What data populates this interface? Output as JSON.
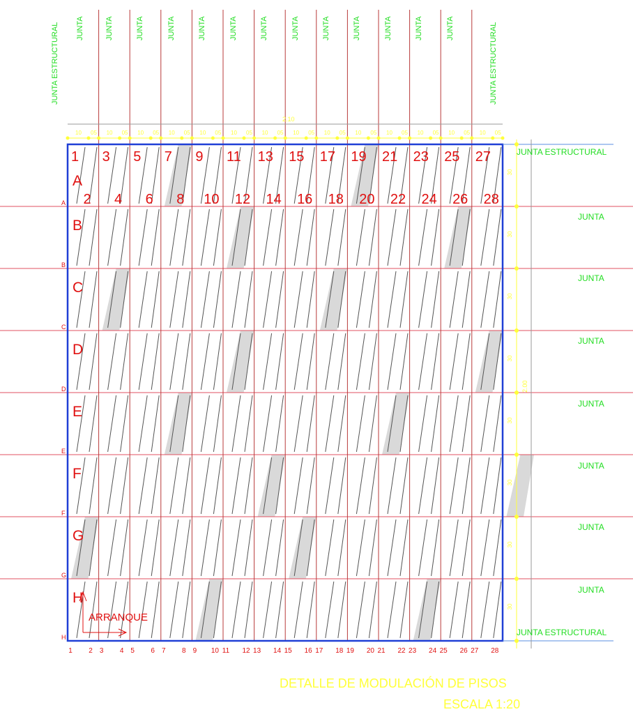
{
  "drawing": {
    "title": "DETALLE DE MODULACIÓN DE PISOS",
    "scale": "ESCALA 1:20",
    "start_label": "ARRANQUE",
    "total_width_label": "2.10",
    "total_height_label": "2.00",
    "module_width_labels": [
      "10",
      "05"
    ],
    "row_height_label": "30",
    "col_numbers_top": [
      "1",
      "3",
      "5",
      "7",
      "9",
      "11",
      "13",
      "15",
      "17",
      "19",
      "21",
      "23",
      "25",
      "27"
    ],
    "col_numbers_bottom": [
      "2",
      "4",
      "6",
      "8",
      "10",
      "12",
      "14",
      "16",
      "18",
      "20",
      "22",
      "24",
      "26",
      "28"
    ],
    "row_letters": [
      "A",
      "B",
      "C",
      "D",
      "E",
      "F",
      "G",
      "H"
    ],
    "axis_numbers": [
      "1",
      "2",
      "3",
      "4",
      "5",
      "6",
      "7",
      "8",
      "9",
      "10",
      "11",
      "12",
      "13",
      "14",
      "15",
      "16",
      "17",
      "18",
      "19",
      "20",
      "21",
      "22",
      "23",
      "24",
      "25",
      "26",
      "27",
      "28"
    ],
    "top_joint_labels": [
      "JUNTA ESTRUCTURAL",
      "JUNTA",
      "JUNTA",
      "JUNTA",
      "JUNTA",
      "JUNTA",
      "JUNTA",
      "JUNTA",
      "JUNTA",
      "JUNTA",
      "JUNTA",
      "JUNTA",
      "JUNTA",
      "JUNTA",
      "JUNTA ESTRUCTURAL"
    ],
    "right_joint_labels": [
      "JUNTA ESTRUCTURAL",
      "JUNTA",
      "JUNTA",
      "JUNTA",
      "JUNTA",
      "JUNTA",
      "JUNTA",
      "JUNTA",
      "JUNTA ESTRUCTURAL"
    ],
    "shaded_tiles": [
      {
        "row": "A",
        "module": 3
      },
      {
        "row": "A",
        "module": 9
      },
      {
        "row": "B",
        "module": 5
      },
      {
        "row": "B",
        "module": 12
      },
      {
        "row": "C",
        "module": 1
      },
      {
        "row": "C",
        "module": 8
      },
      {
        "row": "D",
        "module": 5
      },
      {
        "row": "D",
        "module": 13
      },
      {
        "row": "E",
        "module": 3
      },
      {
        "row": "E",
        "module": 10
      },
      {
        "row": "F",
        "module": 6
      },
      {
        "row": "F",
        "module": 14
      },
      {
        "row": "G",
        "module": 0
      },
      {
        "row": "G",
        "module": 7
      },
      {
        "row": "H",
        "module": 4
      },
      {
        "row": "H",
        "module": 11
      }
    ],
    "colors": {
      "border": "#1f3fd6",
      "grid_line": "#e05060",
      "joint_line": "#b83a3a",
      "tile_line": "#555555",
      "shade": "#d9d9d9",
      "text": "#e01010",
      "junta": "#22dd22",
      "dim": "#ffff3a",
      "right_line": "#5a8fe0"
    }
  }
}
